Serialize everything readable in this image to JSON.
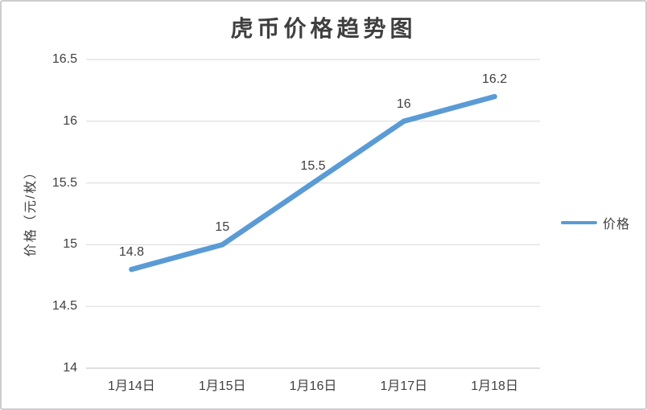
{
  "chart_data": {
    "type": "line",
    "title": "虎币价格趋势图",
    "ylabel": "价格（元/枚）",
    "xlabel": "",
    "categories": [
      "1月14日",
      "1月15日",
      "1月16日",
      "1月17日",
      "1月18日"
    ],
    "series": [
      {
        "name": "价格",
        "values": [
          14.8,
          15,
          15.5,
          16,
          16.2
        ]
      }
    ],
    "data_labels": [
      "14.8",
      "15",
      "15.5",
      "16",
      "16.2"
    ],
    "yticks": [
      "16.5",
      "16",
      "15.5",
      "15",
      "14.5",
      "14"
    ],
    "ylim": [
      14,
      16.5
    ],
    "grid": true,
    "legend_position": "right",
    "colors": {
      "series": "#5B9BD5",
      "gridline": "#D9D9D9",
      "axis_line": "#BFBFBF",
      "text": "#404040",
      "border": "#CDCDCD",
      "background": "#FFFFFF"
    }
  }
}
